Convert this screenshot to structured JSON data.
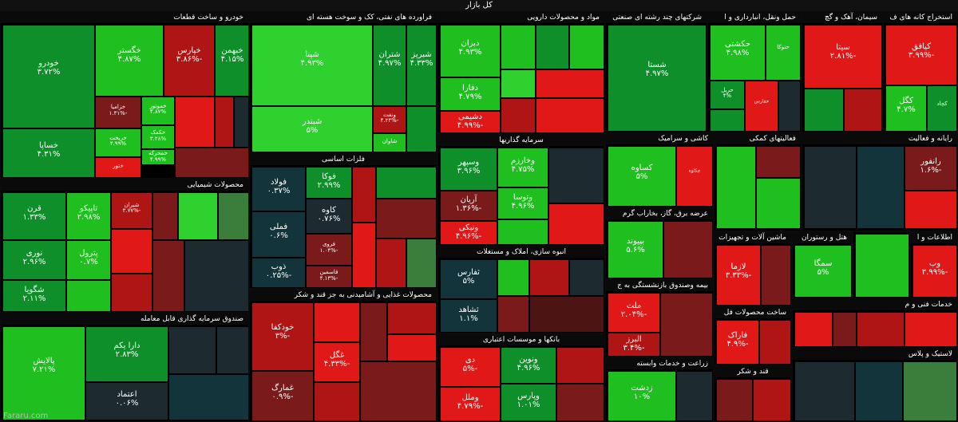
{
  "header": {
    "title": "کل بازار"
  },
  "footer": {
    "source": "Fararu.com"
  },
  "sectors": {
    "auto": "خودرو و ساخت قطعات",
    "refinery": "فراورده های نفتی، کک و سوخت هسته ای",
    "pharma": "مواد و محصولات دارویی",
    "multi": "شرکتهای چند رشته ای صنعتی",
    "transport": "حمل ونقل، انبارداری و ا",
    "cement": "سیمان، آهک و گچ",
    "mining": "استخراج کانه های ف",
    "basic_metals": "فلزات اساسی",
    "chem": "محصولات شیمیایی",
    "fund": "صندوق سرمایه گذاری قابل معامله",
    "invest": "سرمایه گذاریها",
    "tile": "کاشی و سرامیک",
    "comp": "فعالیتهای کمکی",
    "util": "عرضه برق، گاز، بخاراب گرم",
    "construction": "انبوه سازی، املاک و مستغلات",
    "food": "محصولات غذایی و آشامیدنی به جز قند و شکر",
    "banks": "بانکها و موسسات اعتباری",
    "insurance": "بیمه وصندوق بازنشستگی به ج",
    "agri": "زراعت و خدمات وابسته",
    "sugar": "قند و شکر",
    "machinery": "ماشین آلات و تجهیزات",
    "hotel": "هتل و رستوران",
    "it": "اطلاعات و ا",
    "metal_products": "ساخت محصولات فل",
    "plastic": "لاستیک و پلاس",
    "tech": "خدمات فنی و م",
    "other_misc": "رایانه و فعالیت"
  },
  "tiles": [
    {
      "name": "خودرو",
      "pct": "۳.۷۲%"
    },
    {
      "name": "خگستر",
      "pct": "۴.۸۷%"
    },
    {
      "name": "خپارس",
      "pct": "-۳.۸۶%"
    },
    {
      "name": "خبهمن",
      "pct": "۴.۱۵%"
    },
    {
      "name": "خساپا",
      "pct": "۴.۳۱%"
    },
    {
      "name": "خزامیا",
      "pct": "-۱.۳۱%"
    },
    {
      "name": "خموتور",
      "pct": "۴.۸۷%"
    },
    {
      "name": "خریخت",
      "pct": "۴.۹۹%"
    },
    {
      "name": "خکمک",
      "pct": "۳.۲۸%"
    },
    {
      "name": "خمحرکه",
      "pct": "۴.۹۹%"
    },
    {
      "name": "ختور",
      "pct": ""
    },
    {
      "name": "شپنا",
      "pct": "۴.۹۳%"
    },
    {
      "name": "شتران",
      "pct": "۴.۹۷%"
    },
    {
      "name": "شبریز",
      "pct": "۴.۳۳%"
    },
    {
      "name": "شبندر",
      "pct": "۵%"
    },
    {
      "name": "ونفت",
      "pct": "-۴.۲۴%"
    },
    {
      "name": "شاوان",
      "pct": ""
    },
    {
      "name": "دبران",
      "pct": "۴.۹۳%"
    },
    {
      "name": "دفارا",
      "pct": "۴.۷۹%"
    },
    {
      "name": "دشیمی",
      "pct": "-۴.۹۹%"
    },
    {
      "name": "شستا",
      "pct": "۴.۹۷%"
    },
    {
      "name": "وغدیر",
      "pct": "۴.۹۳%"
    },
    {
      "name": "حکشتی",
      "pct": "۴.۹۸%"
    },
    {
      "name": "حتوکا",
      "pct": ""
    },
    {
      "name": "حریل",
      "pct": "۴%"
    },
    {
      "name": "سیتا",
      "pct": "-۲.۸۱%"
    },
    {
      "name": "کیافق",
      "pct": "-۳.۹۹%"
    },
    {
      "name": "کگل",
      "pct": "۴.۷%"
    },
    {
      "name": "کچاد",
      "pct": ""
    },
    {
      "name": "فولاد",
      "pct": "۰.۳۷%"
    },
    {
      "name": "فوکا",
      "pct": "۲.۹۹%"
    },
    {
      "name": "کاوه",
      "pct": "۰.۷۶%"
    },
    {
      "name": "فملی",
      "pct": "۰.۶%"
    },
    {
      "name": "فروی",
      "pct": "-۱.۰۴%"
    },
    {
      "name": "ذوب",
      "pct": "-۰.۲۵%"
    },
    {
      "name": "فاسمین",
      "pct": "-۴.۱۳%"
    },
    {
      "name": "قرن",
      "pct": "۱.۳۳%"
    },
    {
      "name": "تاپیکو",
      "pct": "۲.۹۸%"
    },
    {
      "name": "شیران",
      "pct": "-۳.۷۷%"
    },
    {
      "name": "نوری",
      "pct": "۲.۹۶%"
    },
    {
      "name": "پترول",
      "pct": "۰.۷%"
    },
    {
      "name": "شگویا",
      "pct": "۲.۱۱%"
    },
    {
      "name": "پالایش",
      "pct": "۷.۲۱%"
    },
    {
      "name": "دارا یکم",
      "pct": "۲.۸۳%"
    },
    {
      "name": "اعتماد",
      "pct": "۰.۰۶%"
    },
    {
      "name": "وسپهر",
      "pct": "۳.۹۶%"
    },
    {
      "name": "وخارزم",
      "pct": "۴.۷۵%"
    },
    {
      "name": "آریان",
      "pct": "-۱.۳۶%"
    },
    {
      "name": "وتوسا",
      "pct": "۴.۹۶%"
    },
    {
      "name": "ونیکی",
      "pct": "-۴.۹۶%"
    },
    {
      "name": "کساوه",
      "pct": "۵%"
    },
    {
      "name": "بپیوند",
      "pct": "۵.۶%"
    },
    {
      "name": "ثفارس",
      "pct": "۵%"
    },
    {
      "name": "ثشاهد",
      "pct": "۱.۱%"
    },
    {
      "name": "خودکفا",
      "pct": "-۳%"
    },
    {
      "name": "غگل",
      "pct": "-۴.۳۳%"
    },
    {
      "name": "غمارگ",
      "pct": "-۰.۹%"
    },
    {
      "name": "دی",
      "pct": "-۵%"
    },
    {
      "name": "وملل",
      "pct": "-۴.۷۹%"
    },
    {
      "name": "ونوین",
      "pct": "۴.۹۶%"
    },
    {
      "name": "وپارس",
      "pct": "۱.۰۱%"
    },
    {
      "name": "ملت",
      "pct": "-۲.۰۴%"
    },
    {
      "name": "البرز",
      "pct": "-۳.۴%"
    },
    {
      "name": "زدشت",
      "pct": "۱۰%"
    },
    {
      "name": "لازما",
      "pct": "-۳.۳۳%"
    },
    {
      "name": "سمگا",
      "pct": "۵%"
    },
    {
      "name": "وب",
      "pct": "-۳.۹۹%"
    },
    {
      "name": "رانفور",
      "pct": "-۱.۶%"
    },
    {
      "name": "فاراک",
      "pct": "-۴.۹%"
    },
    {
      "name": "حفارس",
      "pct": ""
    },
    {
      "name": "چکاوه",
      "pct": ""
    }
  ]
}
